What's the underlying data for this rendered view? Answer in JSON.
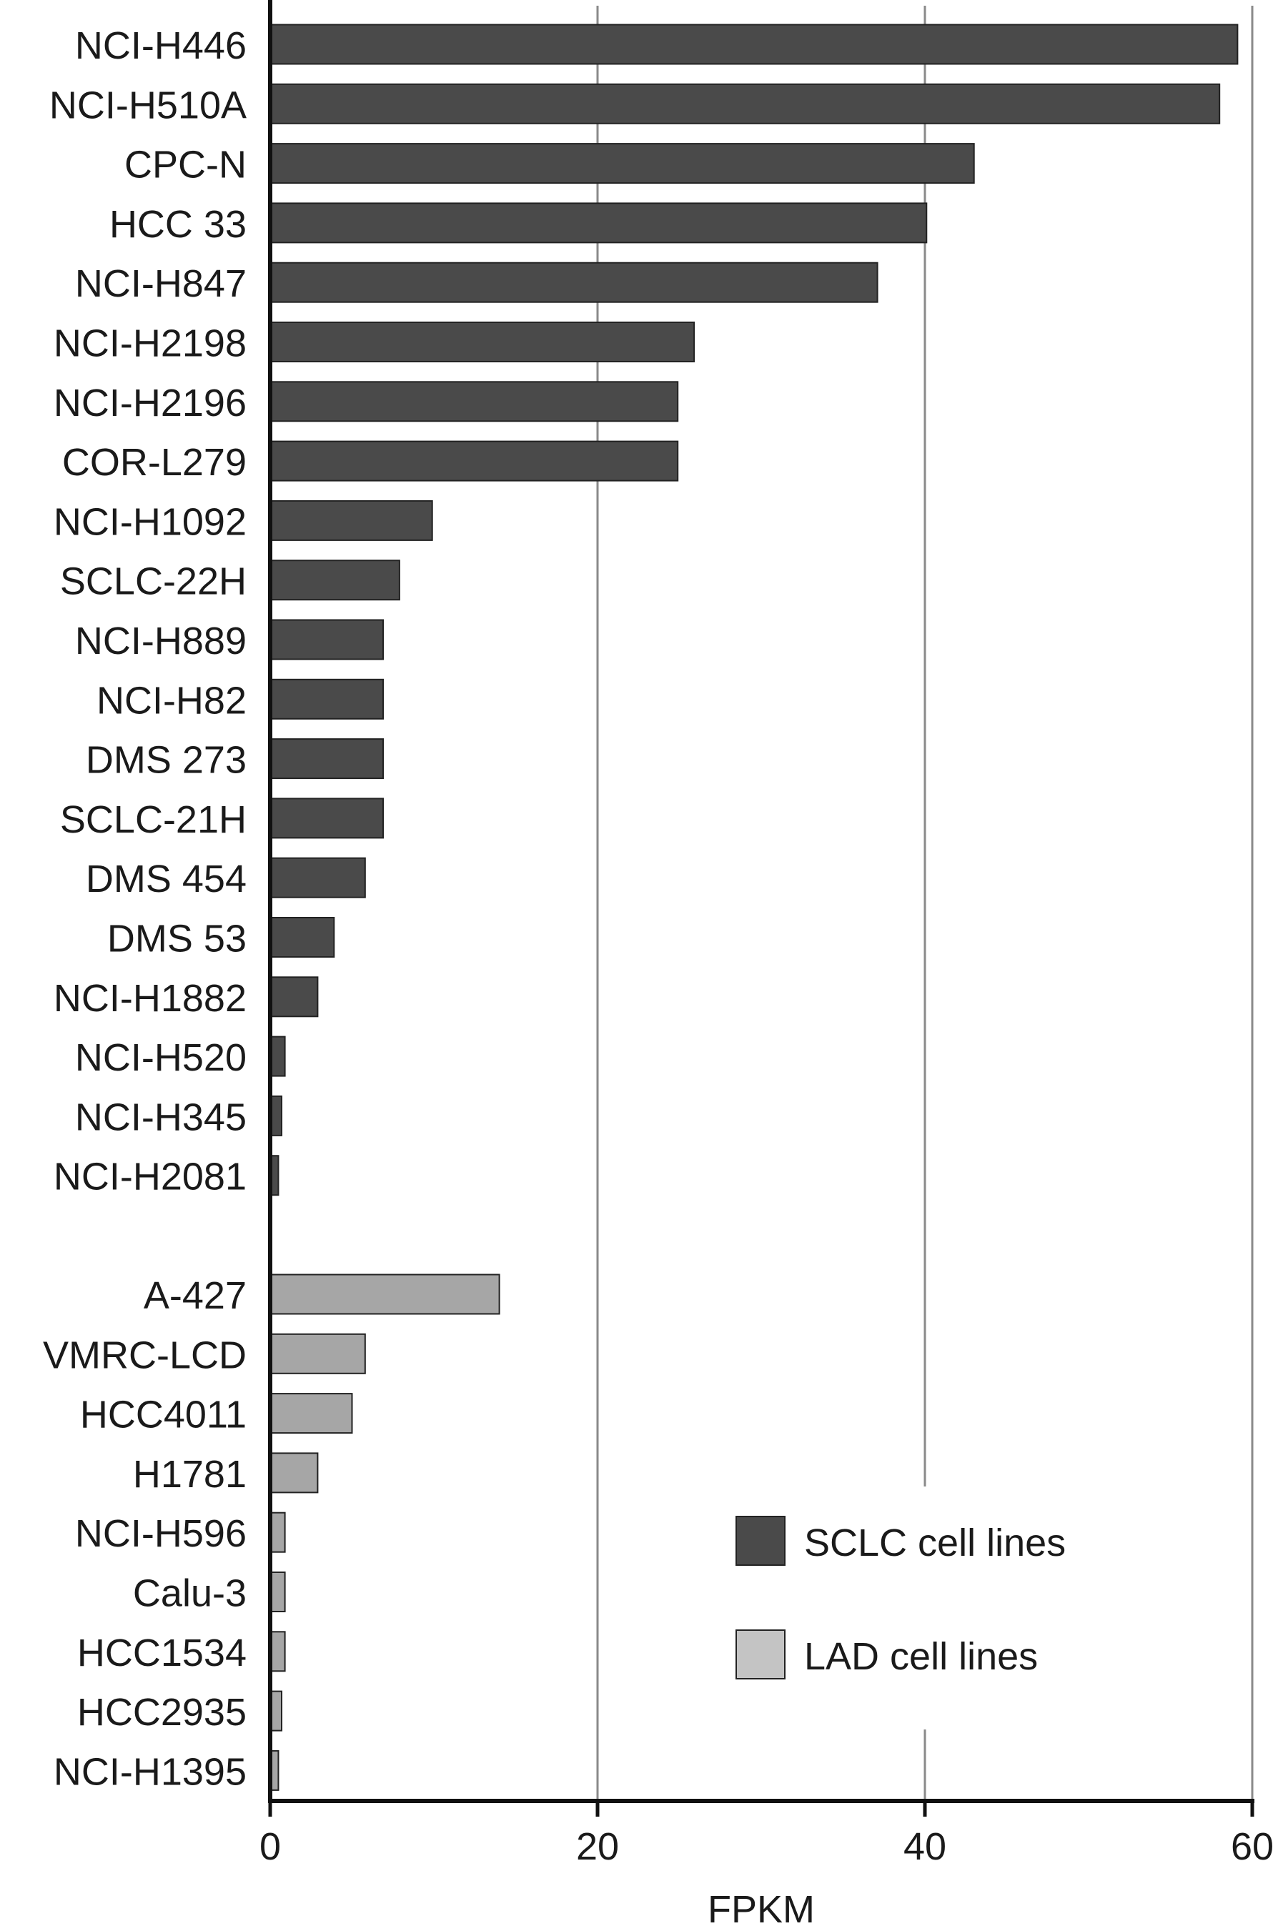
{
  "chart_data": {
    "type": "bar",
    "orientation": "horizontal",
    "xlabel": "FPKM",
    "xlim": [
      0,
      60
    ],
    "xticks": [
      "0",
      "20",
      "40",
      "60"
    ],
    "grid": "vertical",
    "legend_position": "bottom-right",
    "series": [
      {
        "name": "SCLC cell lines",
        "color": "#4a4a4a",
        "categories": [
          "NCI-H446",
          "NCI-H510A",
          "CPC-N",
          "HCC 33",
          "NCI-H847",
          "NCI-H2198",
          "NCI-H2196",
          "COR-L279",
          "NCI-H1092",
          "SCLC-22H",
          "NCI-H889",
          "NCI-H82",
          "DMS 273",
          "SCLC-21H",
          "DMS 454",
          "DMS 53",
          "NCI-H1882",
          "NCI-H520",
          "NCI-H345",
          "NCI-H2081"
        ],
        "values": [
          59.1,
          58.0,
          43.0,
          40.1,
          37.1,
          25.9,
          24.9,
          24.9,
          9.9,
          7.9,
          6.9,
          6.9,
          6.9,
          6.9,
          5.8,
          3.9,
          2.9,
          0.9,
          0.7,
          0.5
        ]
      },
      {
        "name": "LAD cell lines",
        "color": "#a6a6a6",
        "categories": [
          "A-427",
          "VMRC-LCD",
          "HCC4011",
          "H1781",
          "NCI-H596",
          "Calu-3",
          "HCC1534",
          "HCC2935",
          "NCI-H1395"
        ],
        "values": [
          14.0,
          5.8,
          5.0,
          2.9,
          0.9,
          0.9,
          0.9,
          0.7,
          0.5
        ]
      }
    ]
  }
}
